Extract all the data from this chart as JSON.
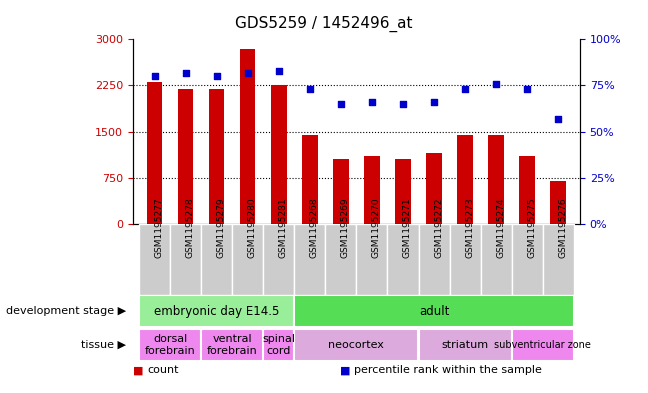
{
  "title": "GDS5259 / 1452496_at",
  "samples": [
    "GSM1195277",
    "GSM1195278",
    "GSM1195279",
    "GSM1195280",
    "GSM1195281",
    "GSM1195268",
    "GSM1195269",
    "GSM1195270",
    "GSM1195271",
    "GSM1195272",
    "GSM1195273",
    "GSM1195274",
    "GSM1195275",
    "GSM1195276"
  ],
  "counts": [
    2300,
    2200,
    2200,
    2850,
    2250,
    1450,
    1050,
    1100,
    1050,
    1150,
    1450,
    1450,
    1100,
    700
  ],
  "percentiles": [
    80,
    82,
    80,
    82,
    83,
    73,
    65,
    66,
    65,
    66,
    73,
    76,
    73,
    57
  ],
  "bar_color": "#cc0000",
  "dot_color": "#0000cc",
  "left_ylim": [
    0,
    3000
  ],
  "right_ylim": [
    0,
    100
  ],
  "left_yticks": [
    0,
    750,
    1500,
    2250,
    3000
  ],
  "left_yticklabels": [
    "0",
    "750",
    "1500",
    "2250",
    "3000"
  ],
  "right_yticks": [
    0,
    25,
    50,
    75,
    100
  ],
  "right_yticklabels": [
    "0%",
    "25%",
    "50%",
    "75%",
    "100%"
  ],
  "grid_values": [
    750,
    1500,
    2250
  ],
  "dev_stages": [
    {
      "label": "embryonic day E14.5",
      "start": 0,
      "end": 5,
      "color": "#99ee99"
    },
    {
      "label": "adult",
      "start": 5,
      "end": 14,
      "color": "#55dd55"
    }
  ],
  "tissues": [
    {
      "label": "dorsal\nforebrain",
      "start": 0,
      "end": 2,
      "color": "#ee88ee"
    },
    {
      "label": "ventral\nforebrain",
      "start": 2,
      "end": 4,
      "color": "#ee88ee"
    },
    {
      "label": "spinal\ncord",
      "start": 4,
      "end": 5,
      "color": "#ee88ee"
    },
    {
      "label": "neocortex",
      "start": 5,
      "end": 9,
      "color": "#ddaadd"
    },
    {
      "label": "striatum",
      "start": 9,
      "end": 12,
      "color": "#ddaadd"
    },
    {
      "label": "subventricular zone",
      "start": 12,
      "end": 14,
      "color": "#ee88ee"
    }
  ],
  "legend_items": [
    {
      "label": "count",
      "color": "#cc0000"
    },
    {
      "label": "percentile rank within the sample",
      "color": "#0000cc"
    }
  ],
  "bg_color": "#ffffff",
  "tick_label_color_left": "#cc0000",
  "tick_label_color_right": "#0000cc",
  "xtick_bg_color": "#cccccc",
  "bar_width": 0.5
}
